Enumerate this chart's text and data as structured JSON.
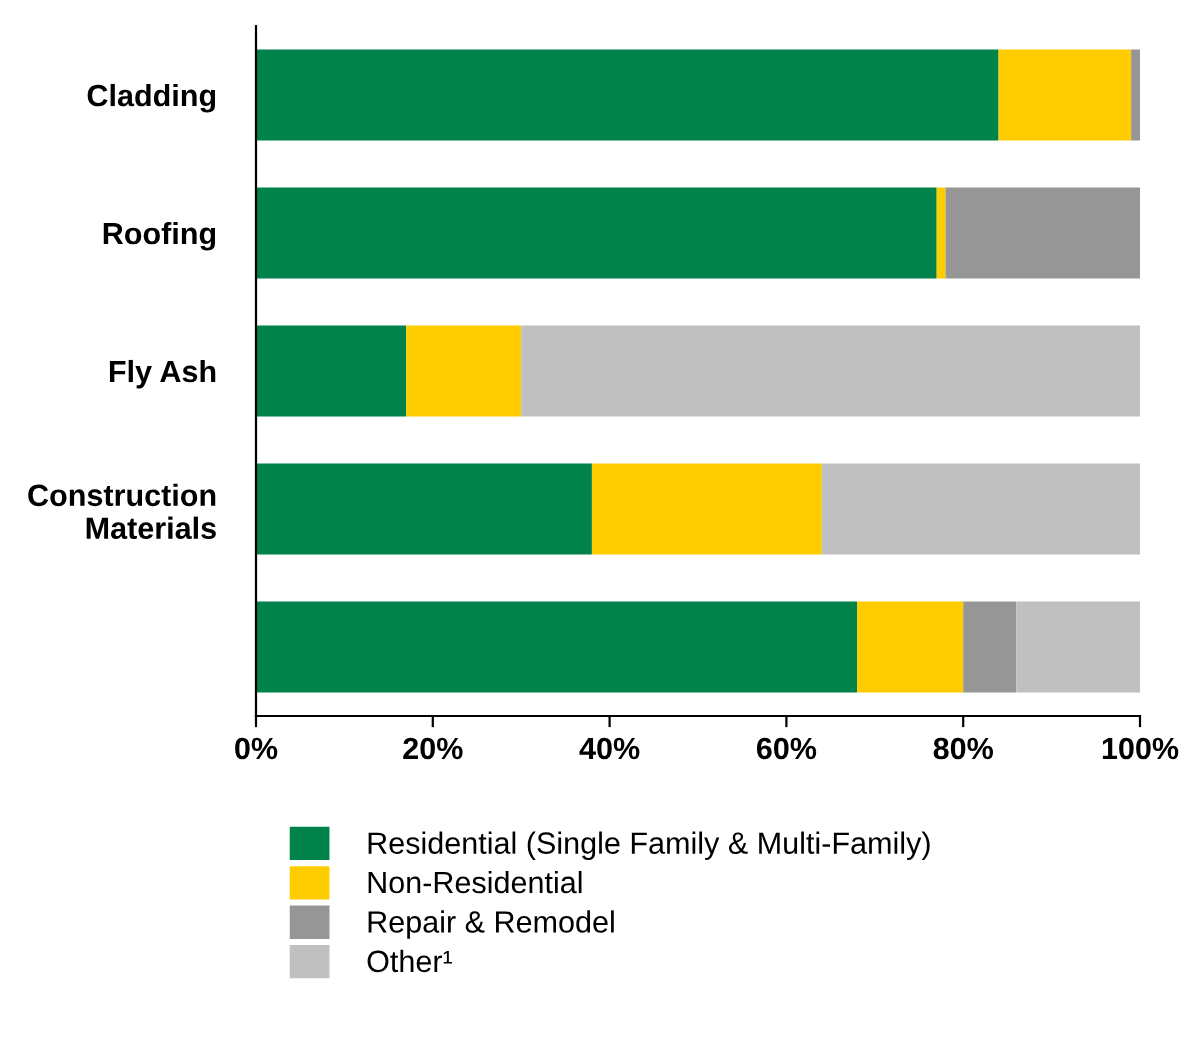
{
  "chart_data": {
    "type": "bar",
    "orientation": "horizontal",
    "stacked": true,
    "categories": [
      "Cladding",
      "Roofing",
      "Fly Ash",
      "Construction\nMaterials",
      null
    ],
    "series": [
      {
        "name": "Residential (Single Family & Multi-Family)",
        "color": "#00834a",
        "values": [
          84,
          77,
          17,
          38,
          68
        ]
      },
      {
        "name": "Non-Residential",
        "color": "#ffcc00",
        "values": [
          15,
          1,
          13,
          26,
          12
        ]
      },
      {
        "name": "Repair & Remodel",
        "color": "#969696",
        "values": [
          1,
          22,
          0,
          0,
          6
        ]
      },
      {
        "name": "Other¹",
        "color": "#c0c0c0",
        "values": [
          0,
          0,
          70,
          36,
          14
        ]
      }
    ],
    "xlim": [
      0,
      100
    ],
    "xticks": [
      {
        "value": 0,
        "label": "0%"
      },
      {
        "value": 20,
        "label": "20%"
      },
      {
        "value": 40,
        "label": "40%"
      },
      {
        "value": 60,
        "label": "60%"
      },
      {
        "value": 80,
        "label": "80%"
      },
      {
        "value": 100,
        "label": "100%"
      }
    ],
    "grid": false,
    "legend": "bottom"
  }
}
